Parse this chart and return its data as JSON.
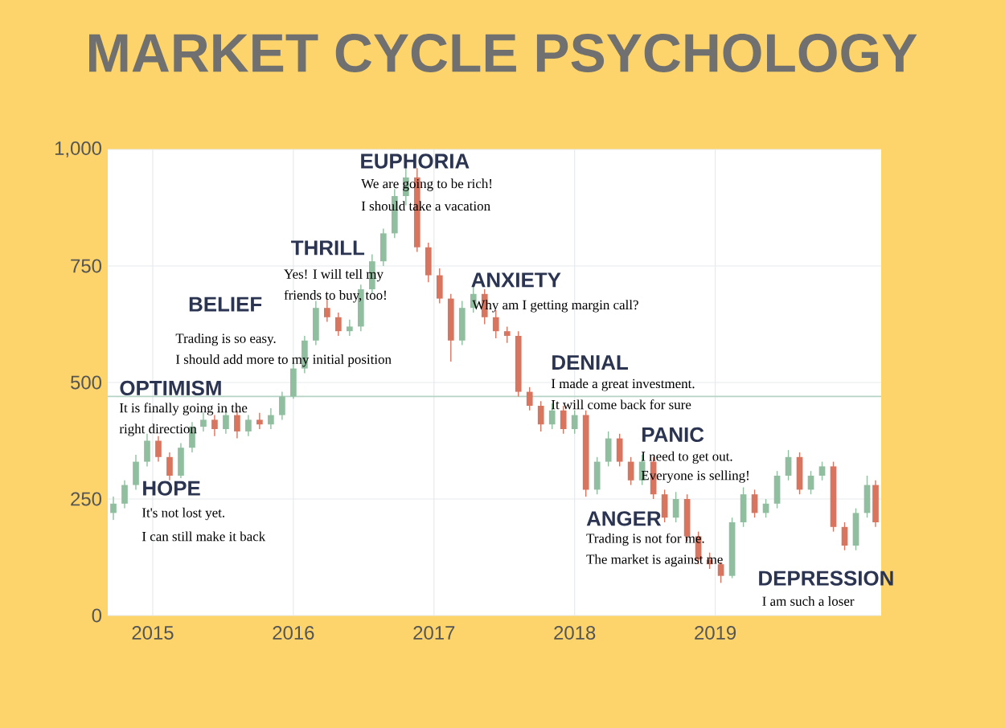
{
  "chart_data": {
    "type": "candlestick",
    "title": "MARKET CYCLE PSYCHOLOGY",
    "x": [
      2014.72,
      2014.8,
      2014.88,
      2014.96,
      2015.04,
      2015.12,
      2015.2,
      2015.28,
      2015.36,
      2015.44,
      2015.52,
      2015.6,
      2015.68,
      2015.76,
      2015.84,
      2015.92,
      2016.0,
      2016.08,
      2016.16,
      2016.24,
      2016.32,
      2016.4,
      2016.48,
      2016.56,
      2016.64,
      2016.72,
      2016.8,
      2016.88,
      2016.96,
      2017.04,
      2017.12,
      2017.2,
      2017.28,
      2017.36,
      2017.44,
      2017.52,
      2017.6,
      2017.68,
      2017.76,
      2017.84,
      2017.92,
      2018.0,
      2018.08,
      2018.16,
      2018.24,
      2018.32,
      2018.4,
      2018.48,
      2018.56,
      2018.64,
      2018.72,
      2018.8,
      2018.88,
      2018.96,
      2019.04,
      2019.12,
      2019.2,
      2019.28,
      2019.36,
      2019.44,
      2019.52,
      2019.6,
      2019.68,
      2019.76,
      2019.84,
      2019.92,
      2020.0,
      2020.08,
      2020.14
    ],
    "ohlc": [
      [
        220,
        255,
        205,
        240
      ],
      [
        240,
        290,
        230,
        280
      ],
      [
        280,
        345,
        270,
        330
      ],
      [
        330,
        390,
        320,
        375
      ],
      [
        375,
        385,
        330,
        340
      ],
      [
        340,
        350,
        290,
        300
      ],
      [
        300,
        370,
        295,
        360
      ],
      [
        360,
        415,
        350,
        405
      ],
      [
        405,
        435,
        395,
        420
      ],
      [
        420,
        430,
        385,
        400
      ],
      [
        400,
        445,
        390,
        430
      ],
      [
        430,
        440,
        380,
        395
      ],
      [
        395,
        430,
        385,
        420
      ],
      [
        420,
        435,
        400,
        410
      ],
      [
        410,
        445,
        400,
        430
      ],
      [
        430,
        480,
        420,
        470
      ],
      [
        470,
        545,
        465,
        530
      ],
      [
        530,
        600,
        520,
        590
      ],
      [
        590,
        675,
        580,
        660
      ],
      [
        660,
        680,
        630,
        640
      ],
      [
        640,
        650,
        600,
        610
      ],
      [
        610,
        635,
        600,
        620
      ],
      [
        620,
        710,
        610,
        700
      ],
      [
        700,
        775,
        690,
        760
      ],
      [
        760,
        830,
        750,
        820
      ],
      [
        820,
        915,
        810,
        900
      ],
      [
        900,
        975,
        880,
        940
      ],
      [
        940,
        960,
        780,
        790
      ],
      [
        790,
        800,
        715,
        730
      ],
      [
        730,
        745,
        670,
        680
      ],
      [
        680,
        690,
        545,
        590
      ],
      [
        590,
        675,
        580,
        660
      ],
      [
        660,
        705,
        650,
        690
      ],
      [
        690,
        700,
        625,
        640
      ],
      [
        640,
        655,
        595,
        610
      ],
      [
        610,
        620,
        585,
        600
      ],
      [
        600,
        610,
        470,
        480
      ],
      [
        480,
        490,
        440,
        450
      ],
      [
        450,
        460,
        395,
        410
      ],
      [
        410,
        455,
        400,
        440
      ],
      [
        440,
        450,
        390,
        400
      ],
      [
        400,
        440,
        390,
        430
      ],
      [
        430,
        440,
        255,
        270
      ],
      [
        270,
        340,
        260,
        330
      ],
      [
        330,
        395,
        320,
        380
      ],
      [
        380,
        390,
        320,
        330
      ],
      [
        330,
        340,
        280,
        290
      ],
      [
        290,
        345,
        280,
        330
      ],
      [
        330,
        340,
        250,
        260
      ],
      [
        260,
        270,
        200,
        210
      ],
      [
        210,
        265,
        200,
        250
      ],
      [
        250,
        260,
        160,
        170
      ],
      [
        170,
        180,
        110,
        120
      ],
      [
        120,
        135,
        100,
        110
      ],
      [
        110,
        115,
        70,
        85
      ],
      [
        85,
        210,
        80,
        200
      ],
      [
        200,
        275,
        190,
        260
      ],
      [
        260,
        270,
        210,
        220
      ],
      [
        220,
        250,
        210,
        240
      ],
      [
        240,
        310,
        230,
        300
      ],
      [
        300,
        355,
        290,
        340
      ],
      [
        340,
        350,
        260,
        270
      ],
      [
        270,
        310,
        260,
        300
      ],
      [
        300,
        330,
        290,
        320
      ],
      [
        320,
        330,
        180,
        190
      ],
      [
        190,
        200,
        140,
        150
      ],
      [
        150,
        230,
        140,
        220
      ],
      [
        220,
        300,
        210,
        280
      ],
      [
        280,
        290,
        190,
        200
      ]
    ],
    "colors": [
      "#8fbf9f",
      "#8fbf9f",
      "#8fbf9f",
      "#8fbf9f",
      "#d9745f",
      "#d9745f",
      "#8fbf9f",
      "#8fbf9f",
      "#8fbf9f",
      "#d9745f",
      "#8fbf9f",
      "#d9745f",
      "#8fbf9f",
      "#d9745f",
      "#8fbf9f",
      "#8fbf9f",
      "#8fbf9f",
      "#8fbf9f",
      "#8fbf9f",
      "#d9745f",
      "#d9745f",
      "#8fbf9f",
      "#8fbf9f",
      "#8fbf9f",
      "#8fbf9f",
      "#8fbf9f",
      "#8fbf9f",
      "#d9745f",
      "#d9745f",
      "#d9745f",
      "#d9745f",
      "#8fbf9f",
      "#8fbf9f",
      "#d9745f",
      "#d9745f",
      "#d9745f",
      "#d9745f",
      "#d9745f",
      "#d9745f",
      "#8fbf9f",
      "#d9745f",
      "#8fbf9f",
      "#d9745f",
      "#8fbf9f",
      "#8fbf9f",
      "#d9745f",
      "#d9745f",
      "#8fbf9f",
      "#d9745f",
      "#d9745f",
      "#8fbf9f",
      "#d9745f",
      "#d9745f",
      "#d9745f",
      "#d9745f",
      "#8fbf9f",
      "#8fbf9f",
      "#d9745f",
      "#8fbf9f",
      "#8fbf9f",
      "#8fbf9f",
      "#d9745f",
      "#8fbf9f",
      "#8fbf9f",
      "#d9745f",
      "#d9745f",
      "#8fbf9f",
      "#8fbf9f",
      "#d9745f"
    ],
    "xlim": [
      2014.68,
      2020.18
    ],
    "xticks": [
      2015,
      2016,
      2017,
      2018,
      2019
    ],
    "ylim": [
      0,
      1000
    ],
    "yticks": [
      0,
      250,
      500,
      750,
      {
        "value": 1000,
        "label": "1,000"
      }
    ],
    "grid": true,
    "ref_lines": [
      {
        "axis": "y",
        "value": 470,
        "color": "#b5d3c5"
      }
    ],
    "annotations": [
      "OPTIMISM",
      "HOPE",
      "BELIEF",
      "THRILL",
      "EUPHORIA",
      "ANXIETY",
      "DENIAL",
      "PANIC",
      "ANGER",
      "DEPRESSION",
      "It is finally going in the",
      "right direction",
      "It's not lost yet.",
      "I can still make it back",
      "Trading is so easy.",
      "I should add more to my initial position",
      "Yes! I will tell my",
      "friends to buy, too!",
      "We are going to be rich!",
      "I should take a vacation",
      "Why am I getting margin call?",
      "I made a great investment.",
      "It will come back for sure",
      "I need to get out.",
      "Everyone is selling!",
      "Trading is not for me.",
      "The market is against me",
      "I am such a loser"
    ]
  }
}
